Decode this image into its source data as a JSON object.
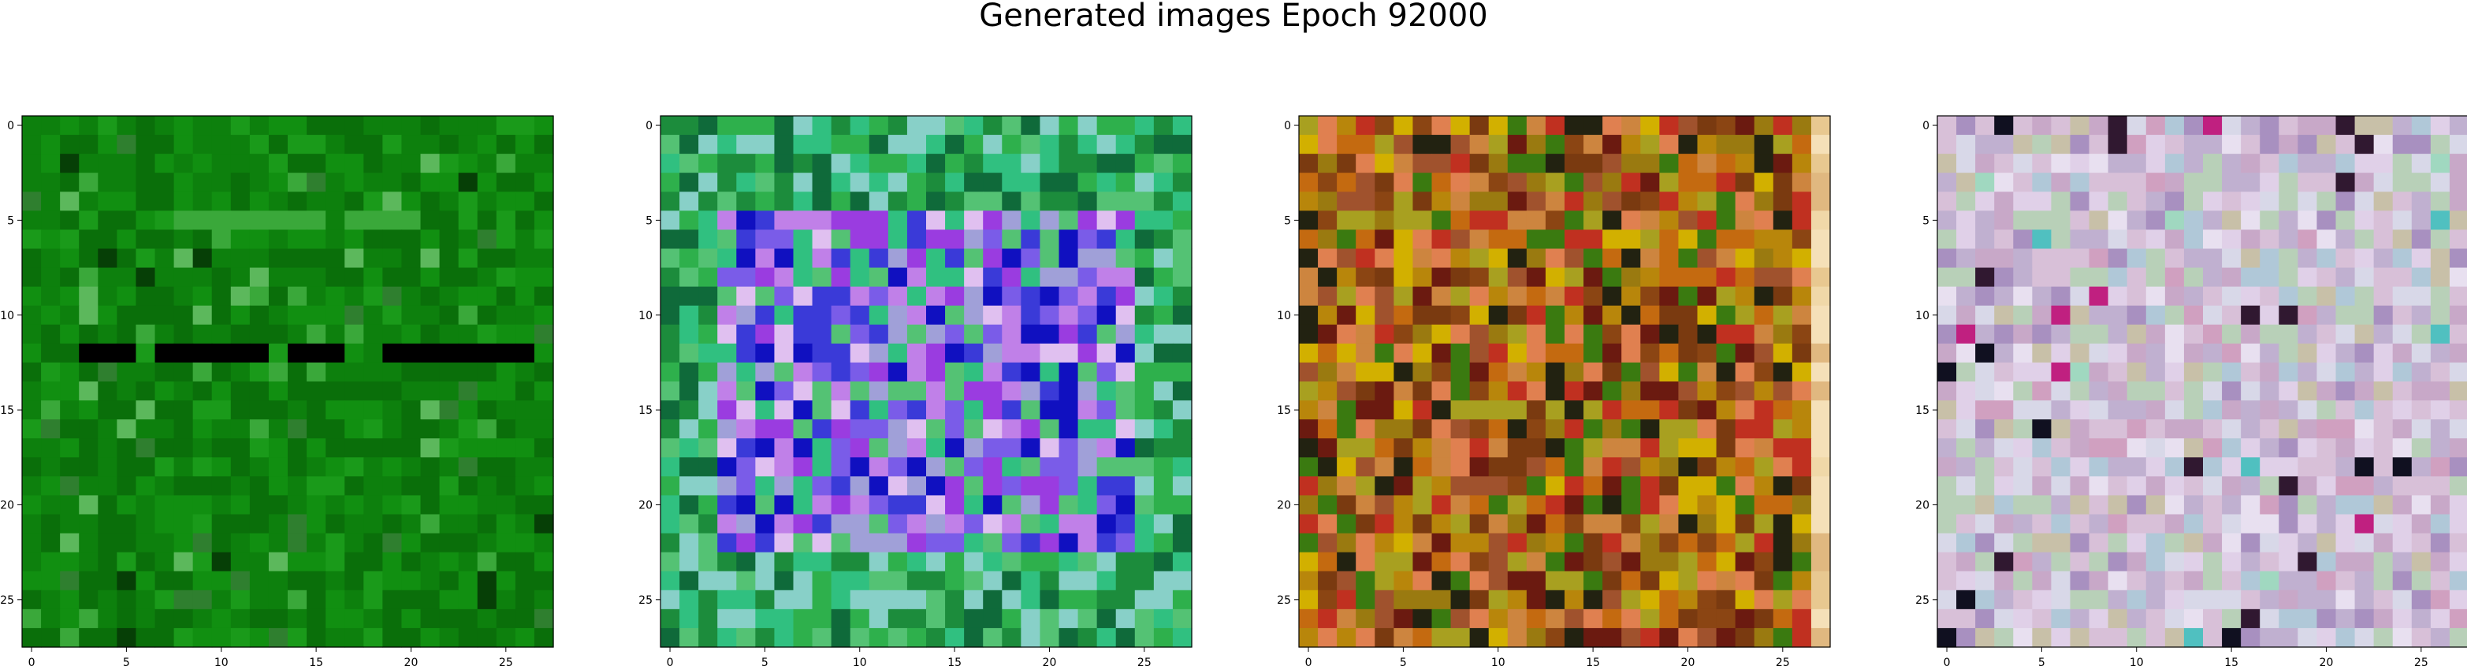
{
  "figure": {
    "title": "Generated images Epoch 92000"
  },
  "chart_data": [
    {
      "type": "heatmap",
      "grid_size": [
        28,
        28
      ],
      "x_ticks": [
        0,
        5,
        10,
        15,
        20,
        25
      ],
      "y_ticks": [
        0,
        5,
        10,
        15,
        20,
        25
      ],
      "xlim": [
        -0.5,
        27.5
      ],
      "ylim": [
        27.5,
        -0.5
      ],
      "palette": [
        "#0a6f0a",
        "#0d800d",
        "#118f11",
        "#1a9a1a",
        "#3aa83a",
        "#5cb85c",
        "#2f7f2f",
        "#063f06",
        "#000000",
        "#7f3fd0",
        "#3b2fb0",
        "#8fc8e8",
        "#b0e0b0",
        "#9acd32"
      ],
      "weights": [
        30,
        30,
        18,
        10,
        4,
        3,
        3,
        2
      ],
      "features": [
        {
          "row": 5,
          "col_start": 5,
          "col_end": 20,
          "color_index": 4
        },
        {
          "row": 12,
          "col_start": 3,
          "col_end": 26,
          "color_index": 8
        }
      ],
      "seed": 11
    },
    {
      "type": "heatmap",
      "grid_size": [
        28,
        28
      ],
      "x_ticks": [
        0,
        5,
        10,
        15,
        20,
        25
      ],
      "y_ticks": [
        0,
        5,
        10,
        15,
        20,
        25
      ],
      "xlim": [
        -0.5,
        27.5
      ],
      "ylim": [
        27.5,
        -0.5
      ],
      "palette": [
        "#1c8c3c",
        "#2eb04c",
        "#54c274",
        "#0f6a3a",
        "#7a5ce8",
        "#9a3ce0",
        "#3a3ad8",
        "#1010c0",
        "#c080e8",
        "#88d0c8",
        "#a0a0d8",
        "#e0c0f0",
        "#111133",
        "#30c080"
      ],
      "center_palette": [
        4,
        5,
        6,
        7,
        8,
        10,
        11,
        13,
        2
      ],
      "edge_palette": [
        0,
        1,
        2,
        3,
        13,
        9
      ],
      "center_box": [
        5,
        22,
        3,
        24
      ],
      "seed": 23
    },
    {
      "type": "heatmap",
      "grid_size": [
        28,
        28
      ],
      "x_ticks": [
        0,
        5,
        10,
        15,
        20,
        25
      ],
      "y_ticks": [
        0,
        5,
        10,
        15,
        20,
        25
      ],
      "xlim": [
        -0.5,
        27.5
      ],
      "ylim": [
        27.5,
        -0.5
      ],
      "palette": [
        "#b8860b",
        "#a0522d",
        "#8b4513",
        "#cd853f",
        "#9a7a10",
        "#c46a10",
        "#7a3a10",
        "#a8a020",
        "#d2b000",
        "#6b1a10",
        "#c03020",
        "#3a7a10",
        "#222211",
        "#e08050"
      ],
      "last_column_palette": [
        "#f0d8a8",
        "#e8c890",
        "#f5e0b8",
        "#e0b880"
      ],
      "seed": 37
    },
    {
      "type": "heatmap",
      "grid_size": [
        28,
        28
      ],
      "x_ticks": [
        0,
        5,
        10,
        15,
        20,
        25
      ],
      "y_ticks": [
        0,
        5,
        10,
        15,
        20,
        25
      ],
      "xlim": [
        -0.5,
        27.5
      ],
      "ylim": [
        27.5,
        -0.5
      ],
      "palette": [
        "#d8c0d8",
        "#c0b0d0",
        "#b8d0b8",
        "#e0d0e8",
        "#c8a8c8",
        "#d8d8e8",
        "#b0c8d8",
        "#c8c0a8",
        "#a890c0",
        "#e8e0f0",
        "#d0a0c0",
        "#301830",
        "#101020",
        "#c02080",
        "#50c0c0",
        "#a0d8c0"
      ],
      "weights": [
        14,
        14,
        12,
        12,
        10,
        10,
        8,
        7,
        6,
        5,
        3,
        2,
        1,
        1,
        1,
        1
      ],
      "seed": 53
    }
  ]
}
